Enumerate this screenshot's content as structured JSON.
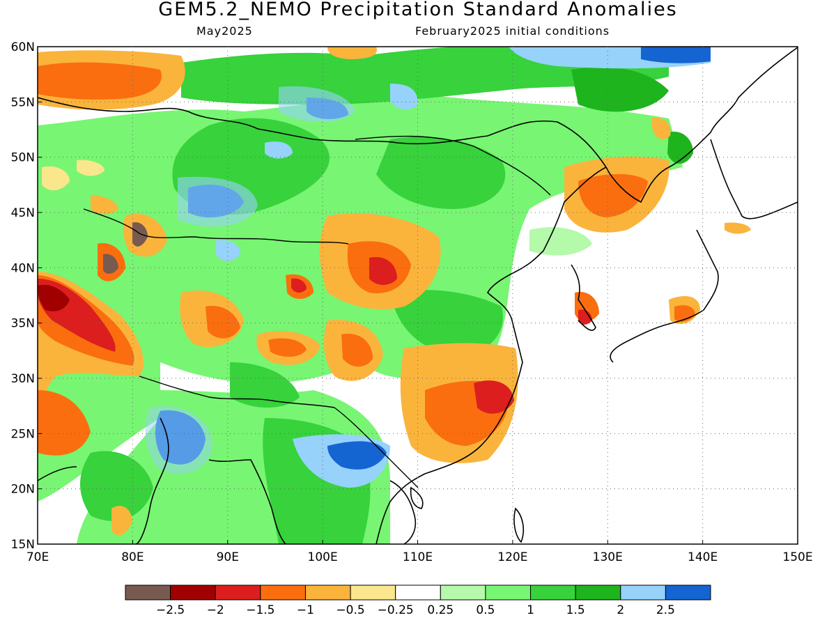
{
  "title": "GEM5.2_NEMO Precipitation Standard Anomalies",
  "subtitle_left": "May2025",
  "subtitle_right": "February2025 initial conditions",
  "map": {
    "lon_range": [
      70,
      150
    ],
    "lat_range": [
      15,
      60
    ],
    "lon_ticks": [
      "70E",
      "80E",
      "90E",
      "100E",
      "110E",
      "120E",
      "130E",
      "140E",
      "150E"
    ],
    "lat_ticks": [
      "60N",
      "55N",
      "50N",
      "45N",
      "40N",
      "35N",
      "30N",
      "25N",
      "20N",
      "15N"
    ]
  },
  "colorbar": {
    "colors": [
      "#785a50",
      "#a00000",
      "#dc1e1e",
      "#fa6e0f",
      "#fab43c",
      "#fae68c",
      "#ffffff",
      "#b4faaa",
      "#78f573",
      "#37d23c",
      "#1eb41e",
      "#96d2fa",
      "#1464d2"
    ],
    "labels": [
      "−2.5",
      "−2",
      "−1.5",
      "−1",
      "−0.5",
      "−0.25",
      "0.25",
      "0.5",
      "1",
      "1.5",
      "2",
      "2.5"
    ]
  }
}
